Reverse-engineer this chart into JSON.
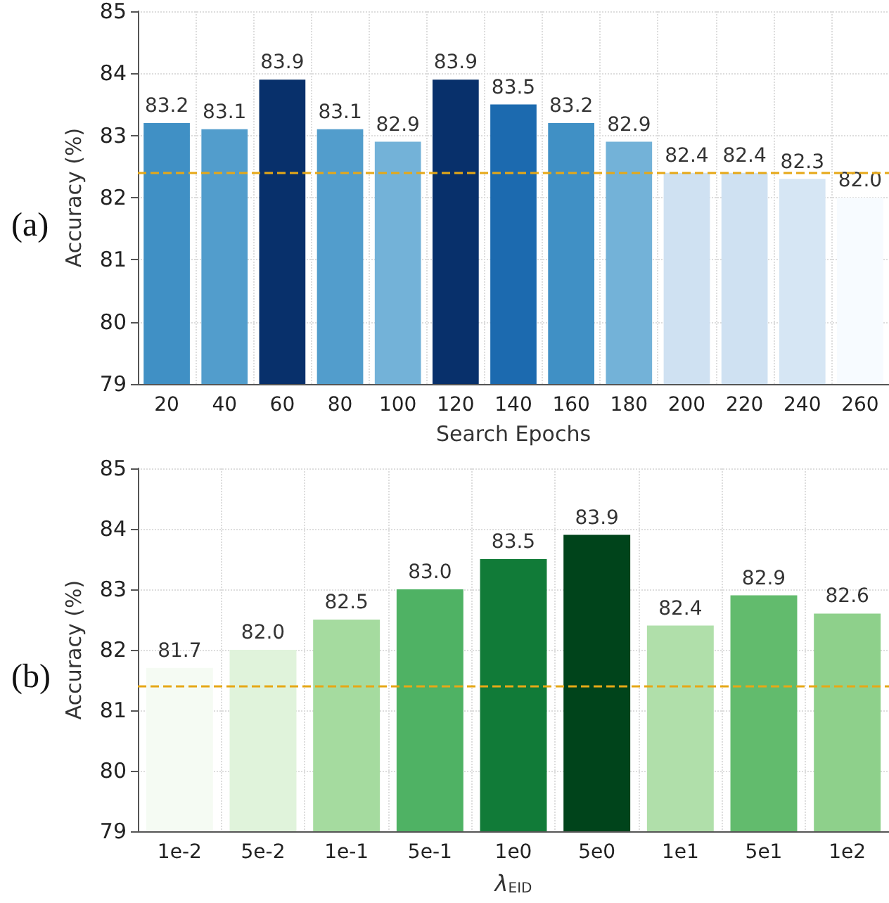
{
  "chart_data": [
    {
      "type": "bar",
      "xlabel": "Search Epochs",
      "ylabel": "Accuracy (%)",
      "annotations": [
        "(a)"
      ],
      "categories": [
        "20",
        "40",
        "60",
        "80",
        "100",
        "120",
        "140",
        "160",
        "180",
        "200",
        "220",
        "240",
        "260"
      ],
      "values": [
        83.2,
        83.1,
        83.9,
        83.1,
        82.9,
        83.9,
        83.5,
        83.2,
        82.9,
        82.4,
        82.4,
        82.3,
        82.0
      ],
      "colors": [
        "#4090c5",
        "#529dcc",
        "#08306b",
        "#529dcc",
        "#73b2d8",
        "#08306b",
        "#1c6aaf",
        "#4090c5",
        "#73b2d8",
        "#cfe1f2",
        "#cfe1f2",
        "#d6e6f4",
        "#f7fbff"
      ],
      "value_labels": [
        "83.2",
        "83.1",
        "83.9",
        "83.1",
        "82.9",
        "83.9",
        "83.5",
        "83.2",
        "82.9",
        "82.4",
        "82.4",
        "82.3",
        "82.0"
      ],
      "ylim": [
        79,
        85
      ],
      "yticks": [
        79,
        80,
        81,
        82,
        83,
        84,
        85
      ],
      "grid": true,
      "ref_lines": [
        {
          "axis": "y",
          "value": 82.4,
          "color": "#e6a817",
          "line_style": "dashed"
        }
      ]
    },
    {
      "type": "bar",
      "xlabel": "λ$_{EID}$",
      "ylabel": "Accuracy (%)",
      "annotations": [
        "(b)"
      ],
      "categories": [
        "1e-2",
        "5e-2",
        "1e-1",
        "5e-1",
        "1e0",
        "5e0",
        "1e1",
        "5e1",
        "1e2"
      ],
      "values": [
        81.7,
        82.0,
        82.5,
        83.0,
        83.5,
        83.9,
        82.4,
        82.9,
        82.6
      ],
      "colors": [
        "#f5fbf3",
        "#e0f3db",
        "#a5db9f",
        "#4fb264",
        "#117b38",
        "#00441b",
        "#b0dfaa",
        "#62bb6d",
        "#8ed08b"
      ],
      "value_labels": [
        "81.7",
        "82.0",
        "82.5",
        "83.0",
        "83.5",
        "83.9",
        "82.4",
        "82.9",
        "82.6"
      ],
      "ylim": [
        79,
        85
      ],
      "yticks": [
        79,
        80,
        81,
        82,
        83,
        84,
        85
      ],
      "grid": true,
      "ref_lines": [
        {
          "axis": "y",
          "value": 81.4,
          "color": "#e6a817",
          "line_style": "dashed"
        }
      ]
    }
  ]
}
